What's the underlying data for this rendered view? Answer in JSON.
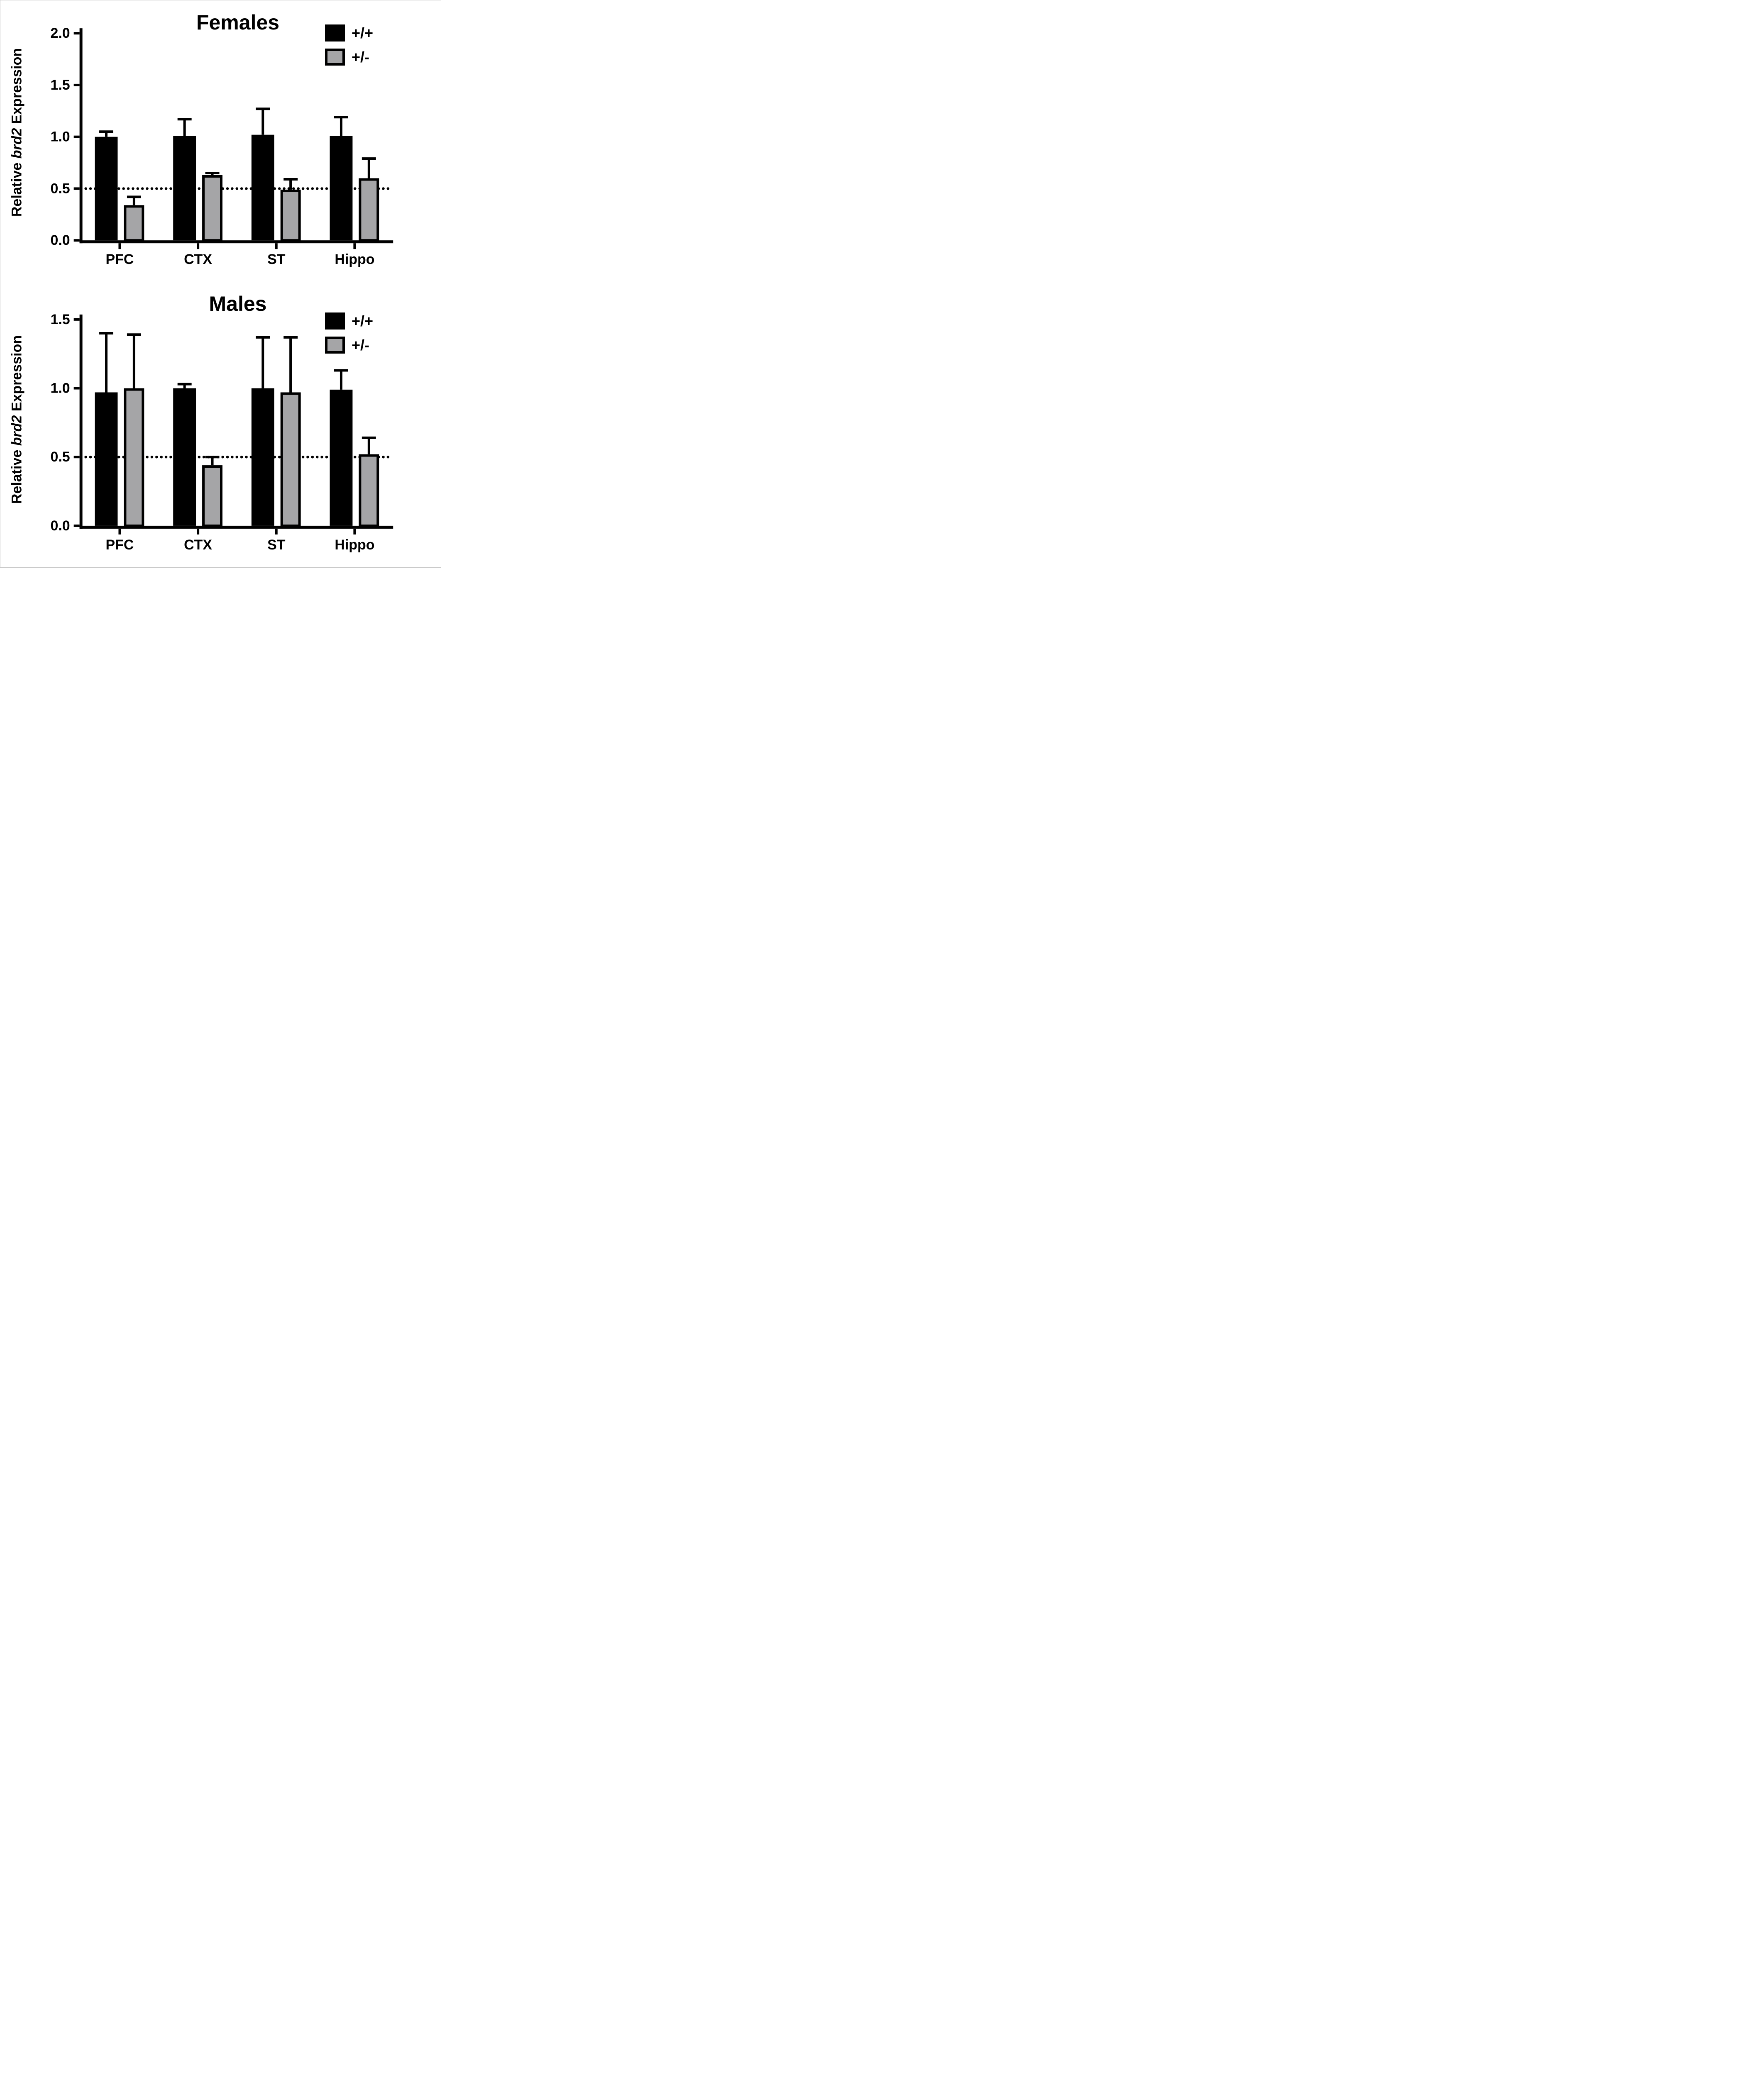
{
  "figure": {
    "background": "#ffffff",
    "frame_color": "#c8c8c8",
    "axis_color": "#000000"
  },
  "chart_data": [
    {
      "type": "bar",
      "title": "Females",
      "ylabel": {
        "prefix": "Relative ",
        "italic": "brd2",
        "suffix": " Expression",
        "full": "Relative brd2 Expression"
      },
      "categories": [
        "PFC",
        "CTX",
        "ST",
        "Hippo"
      ],
      "series": [
        {
          "name": "+/+",
          "genotype": "wildtype",
          "fill": "#000000",
          "values": [
            1.0,
            1.01,
            1.02,
            1.01
          ],
          "errors_plus": [
            0.05,
            0.16,
            0.25,
            0.18
          ]
        },
        {
          "name": "+/-",
          "genotype": "heterozygous",
          "fill": "#a5a5a7",
          "border": "#000000",
          "values": [
            0.34,
            0.63,
            0.49,
            0.6
          ],
          "errors_plus": [
            0.08,
            0.02,
            0.1,
            0.19
          ]
        }
      ],
      "ylim": [
        0,
        2.0
      ],
      "yticks": [
        "0.0",
        "0.5",
        "1.0",
        "1.5",
        "2.0"
      ],
      "reference_line": 0.5,
      "error_bars": "upper-only",
      "legend_position": "top-right",
      "grid": false
    },
    {
      "type": "bar",
      "title": "Males",
      "ylabel": {
        "prefix": "Relative ",
        "italic": "brd2",
        "suffix": " Expression",
        "full": "Relative brd2 Expression"
      },
      "categories": [
        "PFC",
        "CTX",
        "ST",
        "Hippo"
      ],
      "series": [
        {
          "name": "+/+",
          "genotype": "wildtype",
          "fill": "#000000",
          "values": [
            0.97,
            1.0,
            1.0,
            0.99
          ],
          "errors_plus": [
            0.43,
            0.03,
            0.37,
            0.14
          ]
        },
        {
          "name": "+/-",
          "genotype": "heterozygous",
          "fill": "#a5a5a7",
          "border": "#000000",
          "values": [
            1.0,
            0.44,
            0.97,
            0.52
          ],
          "errors_plus": [
            0.39,
            0.06,
            0.4,
            0.12
          ]
        }
      ],
      "ylim": [
        0,
        1.5
      ],
      "yticks": [
        "0.0",
        "0.5",
        "1.0",
        "1.5"
      ],
      "reference_line": 0.5,
      "error_bars": "upper-only",
      "legend_position": "top-right",
      "grid": false
    }
  ]
}
